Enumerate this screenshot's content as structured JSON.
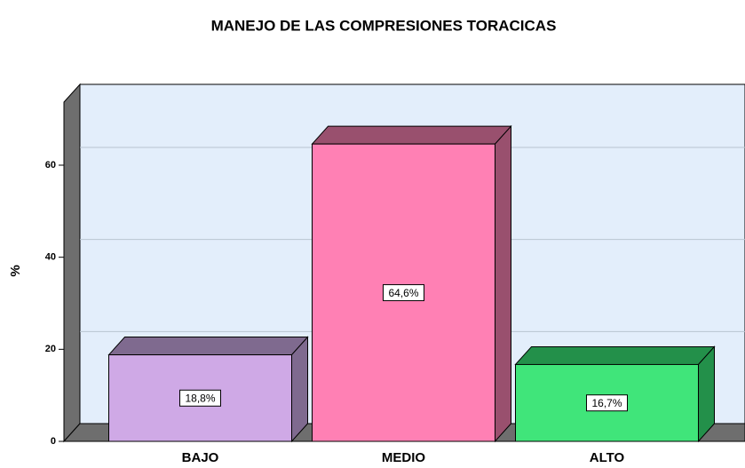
{
  "chart_data": {
    "type": "bar3d",
    "title": "MANEJO DE LAS COMPRESIONES TORACICAS",
    "y_label": "%",
    "categories": [
      "BAJO",
      "MEDIO",
      "ALTO"
    ],
    "values": [
      18.8,
      64.6,
      16.7
    ],
    "value_labels": [
      "18,8%",
      "64,6%",
      "16,7%"
    ],
    "colors": [
      "#cfa9e6",
      "#ff80b4",
      "#40e57a"
    ],
    "shade_colors": [
      "#7f6a8f",
      "#99506e",
      "#23904a"
    ],
    "ylim": [
      0,
      73.7
    ],
    "yticks": [
      0,
      20,
      40,
      60
    ],
    "grid": true
  }
}
